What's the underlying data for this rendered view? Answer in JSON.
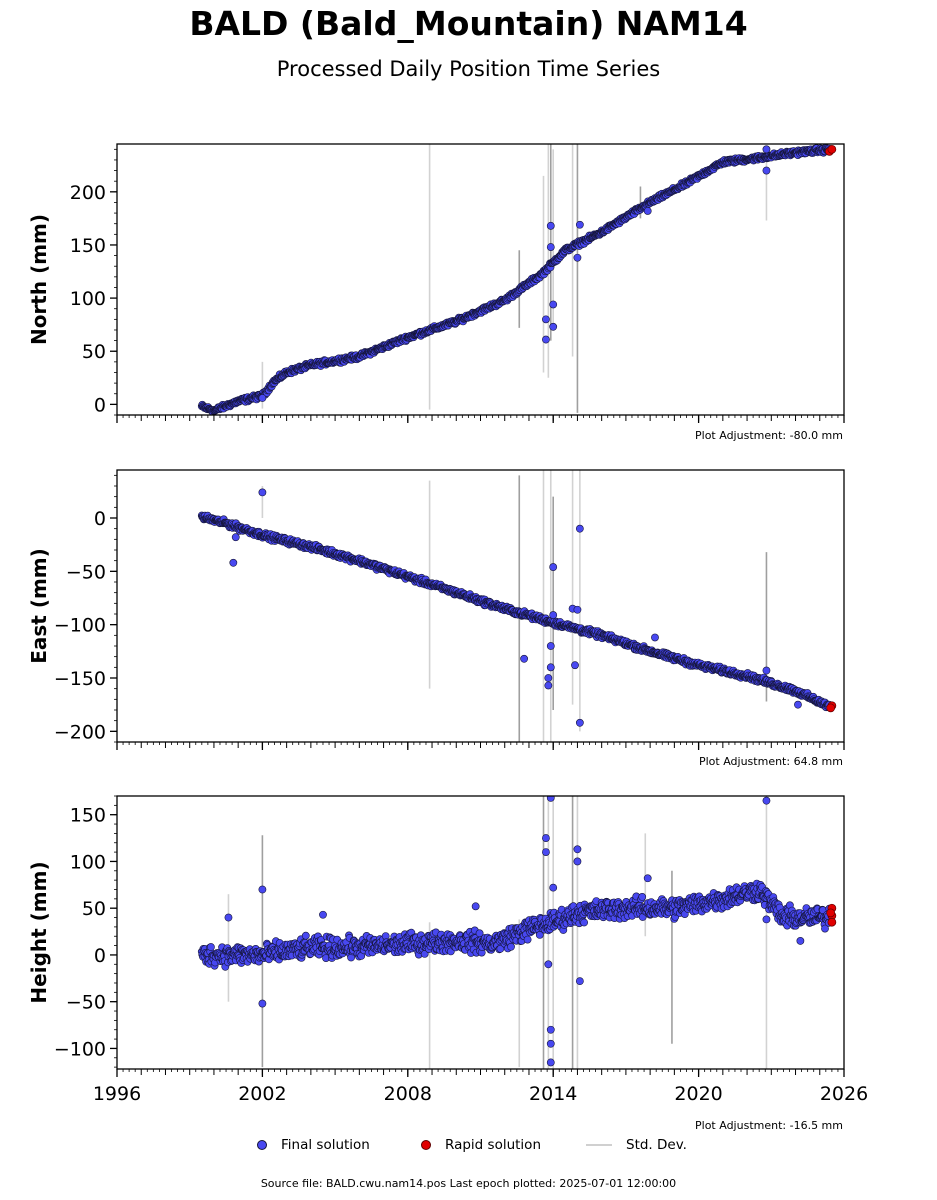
{
  "page": {
    "title": "BALD (Bald_Mountain) NAM14",
    "subtitle": "Processed Daily Position Time Series",
    "source_line": "Source file: BALD.cwu.nam14.pos  Last epoch plotted: 2025-07-01 12:00:00"
  },
  "legend": {
    "final_label": "Final solution",
    "rapid_label": "Rapid solution",
    "std_label": "Std. Dev."
  },
  "colors": {
    "final": "#4848f0",
    "final_edge": "#15153a",
    "rapid": "#e00000",
    "std": "#c8c8c8",
    "std_dark": "#888888"
  },
  "chart_data": [
    {
      "type": "scatter",
      "name": "north",
      "ylabel": "North (mm)",
      "adjustment": "Plot Adjustment: -80.0 mm",
      "xlim": [
        1996,
        2026
      ],
      "ylim": [
        -10,
        245
      ],
      "yticks": [
        0,
        50,
        100,
        150,
        200
      ],
      "ytick_labels": [
        "0",
        "50",
        "100",
        "150",
        "200"
      ],
      "xticks": [
        1996,
        2002,
        2008,
        2014,
        2020,
        2026
      ],
      "xtick_labels": [
        "",
        "",
        "",
        "",
        "",
        ""
      ],
      "trend": [
        [
          1999.5,
          -2
        ],
        [
          2000.0,
          -6
        ],
        [
          2001.0,
          3
        ],
        [
          2002.0,
          8
        ],
        [
          2002.5,
          22
        ],
        [
          2003.0,
          30
        ],
        [
          2004.0,
          37
        ],
        [
          2006.0,
          45
        ],
        [
          2008.0,
          63
        ],
        [
          2010.0,
          78
        ],
        [
          2012.0,
          98
        ],
        [
          2013.5,
          122
        ],
        [
          2014.5,
          145
        ],
        [
          2016.0,
          162
        ],
        [
          2018.0,
          190
        ],
        [
          2019.5,
          208
        ],
        [
          2021.0,
          228
        ],
        [
          2022.5,
          232
        ],
        [
          2024.0,
          237
        ],
        [
          2025.5,
          240
        ]
      ],
      "scatter": 1.8,
      "outliers": [
        [
          2002.0,
          6
        ],
        [
          2013.7,
          80
        ],
        [
          2013.7,
          61
        ],
        [
          2013.9,
          168
        ],
        [
          2013.9,
          148
        ],
        [
          2014.0,
          94
        ],
        [
          2014.0,
          73
        ],
        [
          2015.1,
          169
        ],
        [
          2015.0,
          138
        ],
        [
          2022.8,
          240
        ],
        [
          2022.8,
          220
        ],
        [
          2017.9,
          182
        ]
      ],
      "std_bars": [
        [
          2008.9,
          -5,
          245
        ],
        [
          2012.6,
          72,
          145
        ],
        [
          2013.6,
          30,
          215
        ],
        [
          2013.8,
          25,
          245
        ],
        [
          2013.9,
          60,
          245
        ],
        [
          2014.0,
          70,
          240
        ],
        [
          2014.8,
          45,
          245
        ],
        [
          2015.0,
          -8,
          245
        ],
        [
          2022.8,
          173,
          232
        ],
        [
          2002.0,
          -4,
          40
        ],
        [
          2017.6,
          175,
          205
        ]
      ],
      "rapid": [
        [
          2025.4,
          238
        ],
        [
          2025.5,
          240
        ]
      ]
    },
    {
      "type": "scatter",
      "name": "east",
      "ylabel": "East (mm)",
      "adjustment": "Plot Adjustment: 64.8 mm",
      "xlim": [
        1996,
        2026
      ],
      "ylim": [
        -210,
        45
      ],
      "yticks": [
        -200,
        -150,
        -100,
        -50,
        0
      ],
      "ytick_labels": [
        "−200",
        "−150",
        "−100",
        "−50",
        "0"
      ],
      "xticks": [
        1996,
        2002,
        2008,
        2014,
        2020,
        2026
      ],
      "xtick_labels": [
        "",
        "",
        "",
        "",
        "",
        ""
      ],
      "trend": [
        [
          1999.5,
          1
        ],
        [
          2000.5,
          -5
        ],
        [
          2002.0,
          -16
        ],
        [
          2004.0,
          -27
        ],
        [
          2006.0,
          -40
        ],
        [
          2008.0,
          -55
        ],
        [
          2010.0,
          -70
        ],
        [
          2012.0,
          -85
        ],
        [
          2014.0,
          -98
        ],
        [
          2016.0,
          -110
        ],
        [
          2018.0,
          -125
        ],
        [
          2020.0,
          -138
        ],
        [
          2022.0,
          -148
        ],
        [
          2024.0,
          -162
        ],
        [
          2025.5,
          -178
        ]
      ],
      "scatter": 2.2,
      "outliers": [
        [
          2002.0,
          24
        ],
        [
          2000.8,
          -42
        ],
        [
          2000.9,
          -18
        ],
        [
          2012.8,
          -132
        ],
        [
          2013.8,
          -150
        ],
        [
          2013.8,
          -157
        ],
        [
          2013.9,
          -140
        ],
        [
          2013.9,
          -120
        ],
        [
          2014.0,
          -46
        ],
        [
          2014.0,
          -91
        ],
        [
          2014.8,
          -85
        ],
        [
          2014.9,
          -138
        ],
        [
          2015.1,
          -10
        ],
        [
          2015.1,
          -192
        ],
        [
          2015.0,
          -86
        ],
        [
          2018.2,
          -112
        ],
        [
          2022.8,
          -143
        ],
        [
          2024.1,
          -175
        ]
      ],
      "std_bars": [
        [
          2008.9,
          -160,
          35
        ],
        [
          2012.6,
          -210,
          40
        ],
        [
          2013.6,
          -210,
          45
        ],
        [
          2013.9,
          -210,
          45
        ],
        [
          2014.0,
          -180,
          20
        ],
        [
          2014.8,
          -175,
          45
        ],
        [
          2015.1,
          -200,
          45
        ],
        [
          2022.8,
          -172,
          -32
        ],
        [
          2002.0,
          0,
          30
        ]
      ],
      "rapid": [
        [
          2025.5,
          -176
        ],
        [
          2025.45,
          -178
        ]
      ]
    },
    {
      "type": "scatter",
      "name": "height",
      "ylabel": "Height (mm)",
      "adjustment": "Plot Adjustment: -16.5 mm",
      "xlim": [
        1996,
        2026
      ],
      "ylim": [
        -122,
        170
      ],
      "yticks": [
        -100,
        -50,
        0,
        50,
        100,
        150
      ],
      "ytick_labels": [
        "−100",
        "−50",
        "0",
        "50",
        "100",
        "150"
      ],
      "xticks": [
        1996,
        2002,
        2008,
        2014,
        2020,
        2026
      ],
      "xtick_labels": [
        "1996",
        "2002",
        "2008",
        "2014",
        "2020",
        "2026"
      ],
      "trend": [
        [
          1999.5,
          0
        ],
        [
          2002.0,
          0
        ],
        [
          2004.0,
          8
        ],
        [
          2006.0,
          8
        ],
        [
          2008.0,
          12
        ],
        [
          2010.0,
          15
        ],
        [
          2011.5,
          12
        ],
        [
          2013.0,
          28
        ],
        [
          2014.0,
          35
        ],
        [
          2015.0,
          45
        ],
        [
          2017.0,
          50
        ],
        [
          2019.0,
          50
        ],
        [
          2021.0,
          60
        ],
        [
          2022.5,
          70
        ],
        [
          2023.5,
          40
        ],
        [
          2025.5,
          40
        ]
      ],
      "scatter": 9,
      "outliers": [
        [
          2000.6,
          40
        ],
        [
          2002.0,
          70
        ],
        [
          2002.0,
          -52
        ],
        [
          2004.5,
          43
        ],
        [
          2010.8,
          52
        ],
        [
          2013.7,
          125
        ],
        [
          2013.7,
          110
        ],
        [
          2013.9,
          168
        ],
        [
          2013.9,
          -80
        ],
        [
          2013.9,
          -95
        ],
        [
          2013.9,
          -115
        ],
        [
          2014.0,
          72
        ],
        [
          2013.8,
          -10
        ],
        [
          2015.0,
          113
        ],
        [
          2015.0,
          100
        ],
        [
          2015.1,
          -28
        ],
        [
          2017.9,
          82
        ],
        [
          2022.8,
          165
        ],
        [
          2022.8,
          38
        ],
        [
          2024.2,
          15
        ]
      ],
      "std_bars": [
        [
          2000.6,
          -50,
          65
        ],
        [
          2002.0,
          -120,
          128
        ],
        [
          2008.9,
          -122,
          35
        ],
        [
          2012.6,
          -120,
          38
        ],
        [
          2013.6,
          -122,
          170
        ],
        [
          2013.8,
          -122,
          170
        ],
        [
          2014.0,
          -122,
          170
        ],
        [
          2014.8,
          -122,
          170
        ],
        [
          2015.0,
          -122,
          170
        ],
        [
          2017.8,
          20,
          130
        ],
        [
          2018.9,
          -95,
          90
        ],
        [
          2022.8,
          -122,
          170
        ]
      ],
      "rapid": [
        [
          2025.5,
          50
        ],
        [
          2025.5,
          42
        ],
        [
          2025.5,
          35
        ],
        [
          2025.45,
          45
        ]
      ]
    }
  ]
}
